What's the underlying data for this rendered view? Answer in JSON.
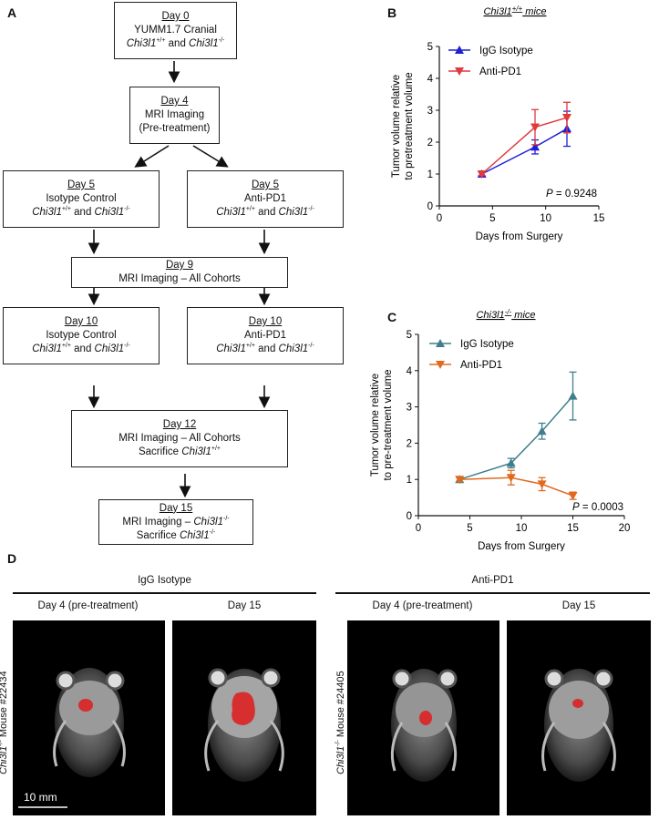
{
  "panels": {
    "a": "A",
    "b": "B",
    "c": "C",
    "d": "D"
  },
  "flow": {
    "day0": {
      "day": "Day 0",
      "line1": "YUMM1.7 Cranial",
      "line2": "Chi3l1+/+ and Chi3l1-/-"
    },
    "day4": {
      "day": "Day 4",
      "line1": "MRI Imaging",
      "line2": "(Pre-treatment)"
    },
    "day5_iso": {
      "day": "Day 5",
      "line1": "Isotype Control",
      "line2": "Chi3l1+/+ and Chi3l1-/-"
    },
    "day5_pd1": {
      "day": "Day 5",
      "line1": "Anti-PD1",
      "line2": "Chi3l1+/+ and Chi3l1-/-"
    },
    "day9": {
      "day": "Day 9",
      "line1": "MRI Imaging – All Cohorts"
    },
    "day10_iso": {
      "day": "Day 10",
      "line1": "Isotype Control",
      "line2": "Chi3l1+/+ and Chi3l1-/-"
    },
    "day10_pd1": {
      "day": "Day 10",
      "line1": "Anti-PD1",
      "line2": "Chi3l1+/+ and Chi3l1-/-"
    },
    "day12": {
      "day": "Day 12",
      "line1": "MRI Imaging – All Cohorts",
      "line2": "Sacrifice Chi3l1+/+"
    },
    "day15": {
      "day": "Day 15",
      "line1": "MRI Imaging – Chi3l1-/-",
      "line2": "Sacrifice Chi3l1-/-"
    }
  },
  "chart_data": [
    {
      "type": "line",
      "title": "Chi3l1+/+ mice",
      "xlabel": "Days from Surgery",
      "ylabel": "Tumor volume relative to pretreatment volume",
      "xlim": [
        0,
        15
      ],
      "ylim": [
        0,
        5
      ],
      "xticks": [
        0,
        5,
        10,
        15
      ],
      "yticks": [
        0,
        1,
        2,
        3,
        4,
        5
      ],
      "legend_position": "top-left",
      "annotation": "P = 0.9248",
      "series": [
        {
          "name": "IgG Isotype",
          "color": "#1f1fd6",
          "marker": "triangle-up",
          "x": [
            4,
            9,
            12
          ],
          "y": [
            1.0,
            1.85,
            2.42
          ],
          "err": [
            0.05,
            0.22,
            0.55
          ]
        },
        {
          "name": "Anti-PD1",
          "color": "#e0393e",
          "marker": "triangle-down",
          "x": [
            4,
            9,
            12
          ],
          "y": [
            1.0,
            2.47,
            2.77
          ],
          "err": [
            0.05,
            0.55,
            0.48
          ]
        }
      ]
    },
    {
      "type": "line",
      "title": "Chi3l1-/- mice",
      "xlabel": "Days from Surgery",
      "ylabel": "Tumor volume relative to pre-treatment volume",
      "xlim": [
        0,
        20
      ],
      "ylim": [
        0,
        5
      ],
      "xticks": [
        0,
        5,
        10,
        15,
        20
      ],
      "yticks": [
        0,
        1,
        2,
        3,
        4,
        5
      ],
      "legend_position": "top-left",
      "annotation": "P = 0.0003",
      "series": [
        {
          "name": "IgG Isotype",
          "color": "#3f7f8c",
          "marker": "triangle-up",
          "x": [
            4,
            9,
            12,
            15
          ],
          "y": [
            1.0,
            1.45,
            2.33,
            3.3
          ],
          "err": [
            0.06,
            0.13,
            0.22,
            0.66
          ]
        },
        {
          "name": "Anti-PD1",
          "color": "#e06a1e",
          "marker": "triangle-down",
          "x": [
            4,
            9,
            12,
            15
          ],
          "y": [
            1.0,
            1.05,
            0.87,
            0.55
          ],
          "err": [
            0.06,
            0.2,
            0.18,
            0.1
          ]
        }
      ]
    }
  ],
  "mri": {
    "igg_header": "IgG Isotype",
    "pd1_header": "Anti-PD1",
    "col_day4": "Day 4 (pre-treatment)",
    "col_day15": "Day 15",
    "mouse1": "Chi3l1-/- Mouse #22434",
    "mouse2": "Chi3l1-/- Mouse #24405",
    "scale": "10 mm"
  }
}
